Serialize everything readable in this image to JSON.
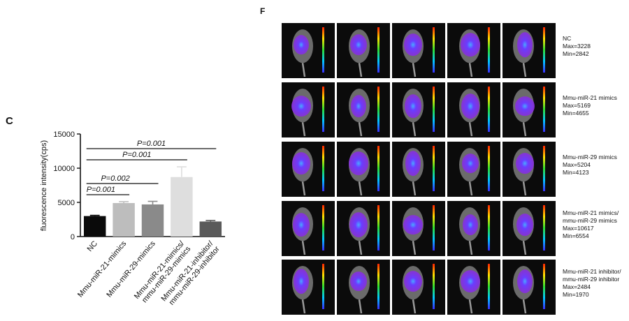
{
  "chart_data": {
    "type": "bar",
    "ylabel": "fluorescence intensity(cps)",
    "categories": [
      [
        "NC"
      ],
      [
        "Mmu-miR-21-mimics"
      ],
      [
        "Mmu-miR-29-mimics"
      ],
      [
        "Mmu-miR-21-mimics/",
        "mmu-miR-29-mimics"
      ],
      [
        "Mmu-miR-21-inhibitor/",
        "mmu-miR-29-inhibitor"
      ]
    ],
    "values": [
      3000,
      4900,
      4700,
      8700,
      2200
    ],
    "errors": [
      100,
      200,
      450,
      1500,
      150
    ],
    "colors": [
      "#0a0a0a",
      "#bdbdbd",
      "#8a8a8a",
      "#dedede",
      "#5a5a5a"
    ],
    "ylim": [
      0,
      15000
    ],
    "yticks": [
      0,
      5000,
      10000,
      15000
    ],
    "annotations": [
      "P=0.001",
      "P=0.002",
      "P=0.001",
      "P=0.001"
    ]
  },
  "panels": {
    "chart_label": "C",
    "images_label": "F",
    "image_rows": [
      [
        "NC",
        "Max=3228",
        "Min=2842"
      ],
      [
        "Mmu-miR-21 mimics",
        "Max=5169",
        "Min=4655"
      ],
      [
        "Mmu-miR-29 mimics",
        "Max=5204",
        "Min=4123"
      ],
      [
        "Mmu-miR-21 mimics/",
        "mmu-miR-29 mimics",
        "Max=10617",
        "Min=6554"
      ],
      [
        "Mmu-miR-21 inhibitor/",
        "mmu-miR-29 inhibitor",
        "Max=2484",
        "Min=1970"
      ]
    ]
  }
}
